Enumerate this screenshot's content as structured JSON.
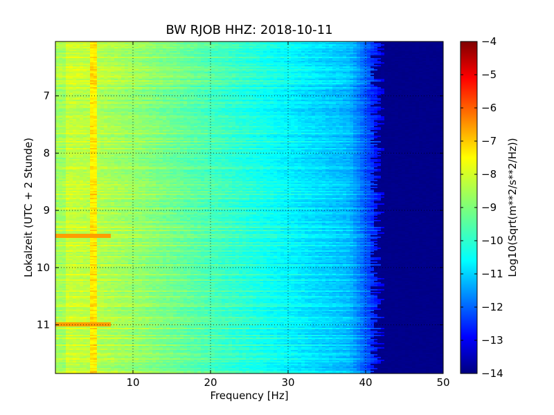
{
  "chart_data": {
    "type": "heatmap",
    "title": "BW RJOB HHZ: 2018-10-11",
    "xlabel": "Frequency [Hz]",
    "ylabel": "Lokalzeit (UTC + 2 Stunde)",
    "xlim": [
      0,
      50
    ],
    "ylim": [
      6.05,
      11.85
    ],
    "x_ticks": [
      10,
      20,
      30,
      40,
      50
    ],
    "y_ticks": [
      7,
      8,
      9,
      10,
      11
    ],
    "y_inverted": true,
    "grid": true,
    "colorbar": {
      "label": "Log10(Sqrt(m**2/s**2/Hz))",
      "range": [
        -14,
        -4
      ],
      "ticks": [
        -4,
        -5,
        -6,
        -7,
        -8,
        -9,
        -10,
        -11,
        -12,
        -13,
        -14
      ],
      "colormap": "jet"
    },
    "features": {
      "vertical_line_hz": 5,
      "cutoff_hz": [
        40,
        43
      ],
      "high_amplitude_hours": [
        9.45,
        11.0
      ]
    }
  }
}
